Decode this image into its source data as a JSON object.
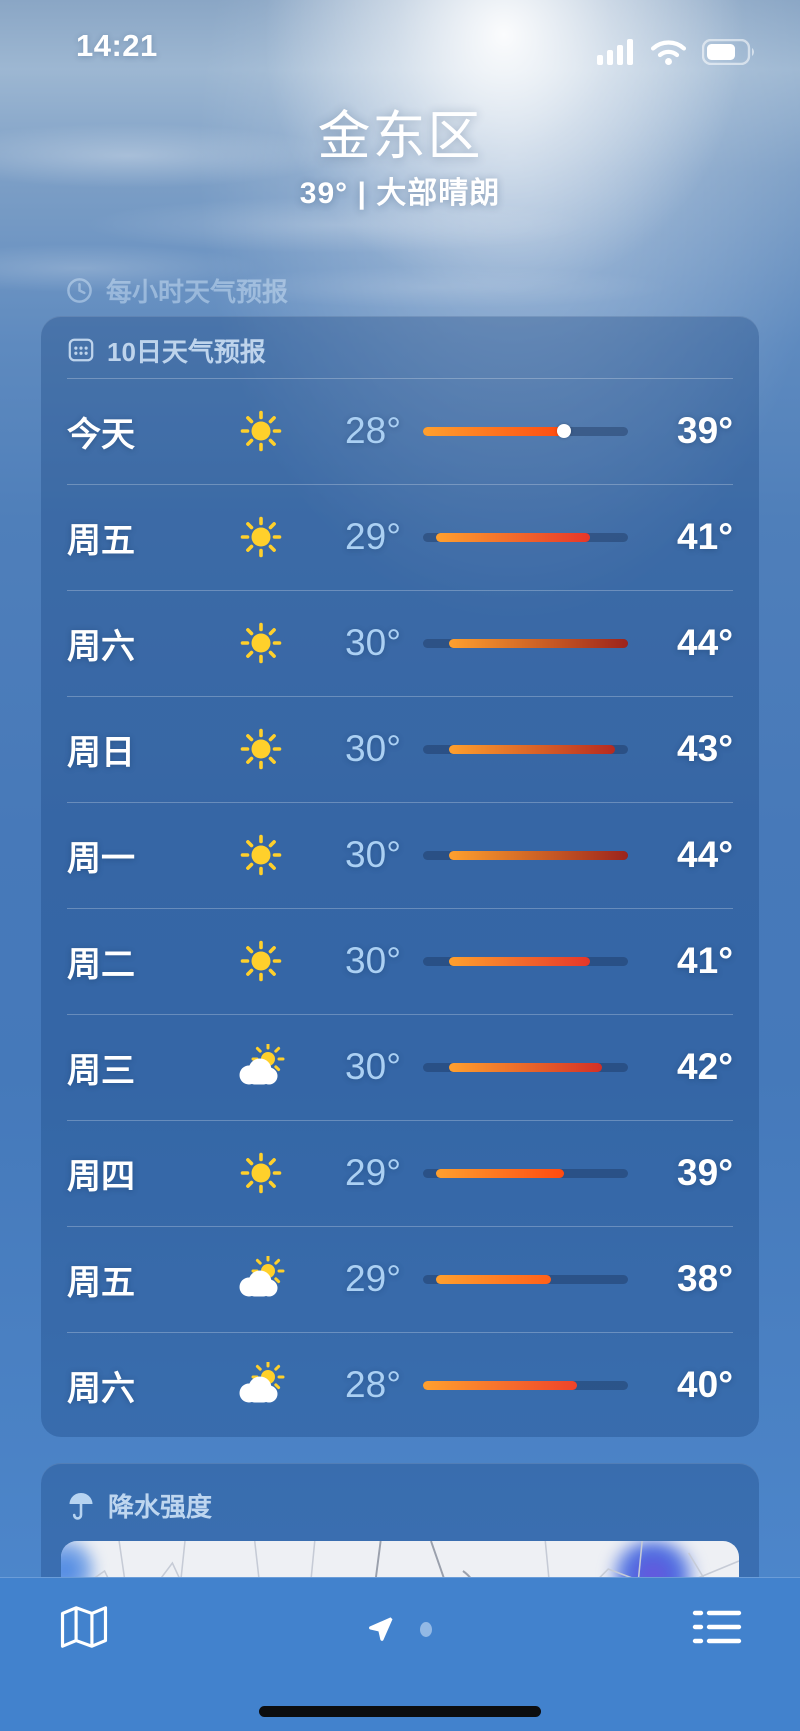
{
  "status_bar": {
    "time": "14:21",
    "icons": [
      "cellular-signal",
      "wifi",
      "battery"
    ],
    "battery_fill_ratio": 0.72
  },
  "header": {
    "location": "金东区",
    "summary": "39° | 大部晴朗"
  },
  "hourly_section": {
    "title": "每小时天气预报",
    "icon": "clock-icon"
  },
  "forecast_section": {
    "title": "10日天气预报",
    "icon": "calendar-icon",
    "temp_scale": {
      "min": 28,
      "max": 44
    },
    "bar_start_color": "#ffa02e",
    "bar_end_colors": {
      "38": "#ff6019",
      "39": "#ff4a10",
      "40": "#ef432a",
      "41": "#e63629",
      "42": "#d43026",
      "43": "#b62a20",
      "44": "#9c231c"
    },
    "days": [
      {
        "label": "今天",
        "icon": "sunny",
        "low": 28,
        "high": 39,
        "current": 39
      },
      {
        "label": "周五",
        "icon": "sunny",
        "low": 29,
        "high": 41
      },
      {
        "label": "周六",
        "icon": "sunny",
        "low": 30,
        "high": 44
      },
      {
        "label": "周日",
        "icon": "sunny",
        "low": 30,
        "high": 43
      },
      {
        "label": "周一",
        "icon": "sunny",
        "low": 30,
        "high": 44
      },
      {
        "label": "周二",
        "icon": "sunny",
        "low": 30,
        "high": 41
      },
      {
        "label": "周三",
        "icon": "partly-cloudy",
        "low": 30,
        "high": 42
      },
      {
        "label": "周四",
        "icon": "sunny",
        "low": 29,
        "high": 39
      },
      {
        "label": "周五",
        "icon": "partly-cloudy",
        "low": 29,
        "high": 38
      },
      {
        "label": "周六",
        "icon": "partly-cloudy",
        "low": 28,
        "high": 40
      }
    ],
    "degree_suffix": "°"
  },
  "precip_section": {
    "title": "降水强度",
    "icon": "umbrella-icon"
  },
  "tab_bar": {
    "items": [
      "map",
      "current-location-page",
      "other-page-dot",
      "list"
    ]
  },
  "colors": {
    "accent_low_temp": "#abd0f3",
    "card_bg": "rgba(18,60,118,0.30)",
    "tab_bar_bg": "#4282cd",
    "sun_icon": "#ffd02b"
  }
}
